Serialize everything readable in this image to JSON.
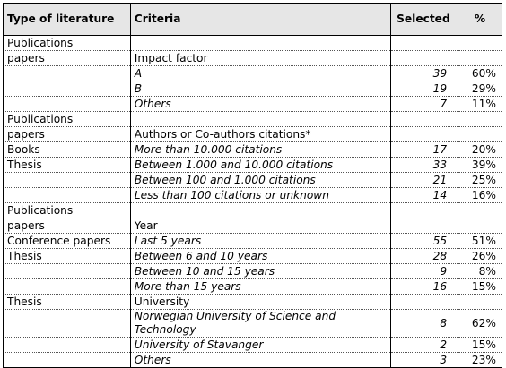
{
  "header": {
    "type": "Type of literature",
    "criteria": "Criteria",
    "selected": "Selected",
    "percent": "%"
  },
  "rows": [
    {
      "type": "Publications",
      "criteria": "",
      "italic": false,
      "selected": "",
      "percent": ""
    },
    {
      "type": "papers",
      "criteria": "Impact factor",
      "italic": false,
      "selected": "",
      "percent": ""
    },
    {
      "type": "",
      "criteria": "A",
      "italic": true,
      "selected": "39",
      "percent": "60%"
    },
    {
      "type": "",
      "criteria": "B",
      "italic": true,
      "selected": "19",
      "percent": "29%"
    },
    {
      "type": "",
      "criteria": "Others",
      "italic": true,
      "selected": "7",
      "percent": "11%"
    },
    {
      "type": "Publications",
      "criteria": "",
      "italic": false,
      "selected": "",
      "percent": ""
    },
    {
      "type": "papers",
      "criteria": "Authors or Co-authors citations*",
      "italic": false,
      "selected": "",
      "percent": ""
    },
    {
      "type": "Books",
      "criteria": "More than 10.000 citations",
      "italic": true,
      "selected": "17",
      "percent": "20%"
    },
    {
      "type": "Thesis",
      "criteria": "Between 1.000 and 10.000 citations",
      "italic": true,
      "selected": "33",
      "percent": "39%"
    },
    {
      "type": "",
      "criteria": "Between 100 and 1.000 citations",
      "italic": true,
      "selected": "21",
      "percent": "25%"
    },
    {
      "type": "",
      "criteria": "Less than 100 citations or unknown",
      "italic": true,
      "selected": "14",
      "percent": "16%"
    },
    {
      "type": "Publications",
      "criteria": "",
      "italic": false,
      "selected": "",
      "percent": ""
    },
    {
      "type": "papers",
      "criteria": "Year",
      "italic": false,
      "selected": "",
      "percent": ""
    },
    {
      "type": "Conference papers",
      "criteria": "Last 5 years",
      "italic": true,
      "selected": "55",
      "percent": "51%"
    },
    {
      "type": "Thesis",
      "criteria": "Between 6 and 10 years",
      "italic": true,
      "selected": "28",
      "percent": "26%"
    },
    {
      "type": "",
      "criteria": "Between 10 and 15 years",
      "italic": true,
      "selected": "9",
      "percent": "8%"
    },
    {
      "type": "",
      "criteria": "More than 15 years",
      "italic": true,
      "selected": "16",
      "percent": "15%"
    },
    {
      "type": "Thesis",
      "criteria": "University",
      "italic": false,
      "selected": "",
      "percent": ""
    },
    {
      "type": "",
      "criteria": "Norwegian University of Science and Technology",
      "italic": true,
      "selected": "8",
      "percent": "62%",
      "tall": true
    },
    {
      "type": "",
      "criteria": "University of Stavanger",
      "italic": true,
      "selected": "2",
      "percent": "15%"
    },
    {
      "type": "",
      "criteria": "Others",
      "italic": true,
      "selected": "3",
      "percent": "23%"
    }
  ]
}
